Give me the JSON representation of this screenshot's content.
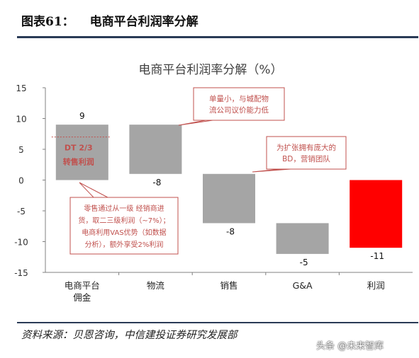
{
  "figure": {
    "number_label": "图表61：",
    "title": "电商平台利润率分解",
    "source": "资料来源：贝恩咨询，中信建投证券研究发展部",
    "watermark": "头条 @未来智库"
  },
  "chart_data": {
    "type": "waterfall",
    "title": "电商平台利润率分解（%）",
    "ylim": [
      -15,
      15
    ],
    "yticks": [
      -15,
      -10,
      -5,
      0,
      5,
      10,
      15
    ],
    "categories": [
      "电商平台\n佣金",
      "物流",
      "销售",
      "G&A",
      "利润"
    ],
    "values": [
      9,
      -8,
      -8,
      -5,
      -11
    ],
    "value_labels": [
      "9",
      "-8",
      "-8",
      "-5",
      "-11"
    ],
    "bars": [
      {
        "base": 0,
        "end": 9,
        "color": "#a5a5a5"
      },
      {
        "base": 9,
        "end": 1,
        "color": "#a5a5a5"
      },
      {
        "base": 1,
        "end": -7,
        "color": "#a5a5a5"
      },
      {
        "base": -7,
        "end": -12,
        "color": "#a5a5a5"
      },
      {
        "base": 0,
        "end": -11,
        "color": "#ff0000"
      }
    ],
    "reference_line": {
      "y": 7,
      "label_lines": [
        "DT 2/3",
        "转售利润"
      ]
    },
    "annotations": [
      {
        "id": "logistics",
        "lines": [
          "单量小，与城配物",
          "流公司议价能力低"
        ]
      },
      {
        "id": "sales",
        "lines": [
          "为扩张拥有庞大的",
          "BD，营销团队"
        ]
      },
      {
        "id": "commission",
        "lines": [
          "零售通过从一级 经销商进",
          "货，取二三级利润（~7%）；",
          "电商利用VAS优势（如数据",
          "分析），额外享受2%利润"
        ]
      }
    ],
    "colors": {
      "bar": "#a5a5a5",
      "profit": "#ff0000",
      "callout": "#c0504d",
      "axis": "#808080"
    }
  }
}
